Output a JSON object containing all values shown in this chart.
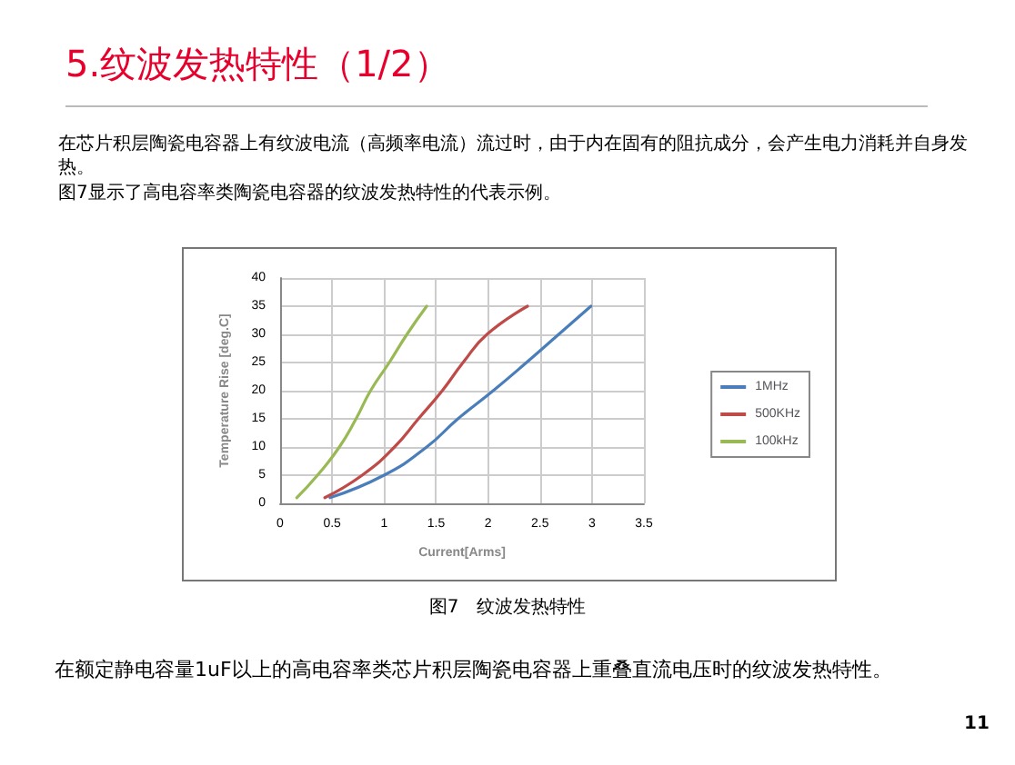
{
  "chart_data": {
    "type": "line",
    "title": "5.纹波发热特性（1/2）",
    "xlabel": "Current[Arms]",
    "ylabel": "Temperature Rise [deg.C]",
    "annotations": [
      "在芯片积层陶瓷电容器上有纹波电流（高频率电流）流过时，由于内在固有的阻抗成分，会产生电力消耗并自身发热。",
      "图7显示了高电容率类陶瓷电容器的纹波发热特性的代表示例。",
      "图7　纹波发热特性",
      "在额定静电容量1uF以上的高电容率类芯片积层陶瓷电容器上重叠直流电压时的纹波发热特性。",
      "11"
    ],
    "series": [
      {
        "name": "1MHz",
        "color": "#4a7ebb",
        "x": [
          0.48,
          1.0,
          1.41,
          1.71,
          2.05,
          2.37,
          2.68,
          2.99
        ],
        "values": [
          1,
          5,
          10,
          15,
          20,
          25,
          30,
          35
        ]
      },
      {
        "name": "500KHz",
        "color": "#be4b48",
        "x": [
          0.43,
          0.79,
          1.1,
          1.33,
          1.56,
          1.76,
          1.99,
          2.38
        ],
        "values": [
          1,
          5,
          10,
          15,
          20,
          25,
          30,
          35
        ]
      },
      {
        "name": "100kHz",
        "color": "#98b954",
        "x": [
          0.16,
          0.36,
          0.57,
          0.73,
          0.87,
          1.05,
          1.22,
          1.41
        ],
        "values": [
          1,
          5,
          10,
          15,
          20,
          25,
          30,
          35
        ]
      }
    ],
    "xlim": [
      0,
      3.5
    ],
    "xticks": [
      0,
      0.5,
      1,
      1.5,
      2,
      2.5,
      3,
      3.5
    ],
    "ylim": [
      0,
      40
    ],
    "yticks": [
      0,
      5,
      10,
      15,
      20,
      25,
      30,
      35,
      40
    ],
    "grid": true,
    "legend": "right",
    "marker": "none",
    "line_style": "solid"
  }
}
